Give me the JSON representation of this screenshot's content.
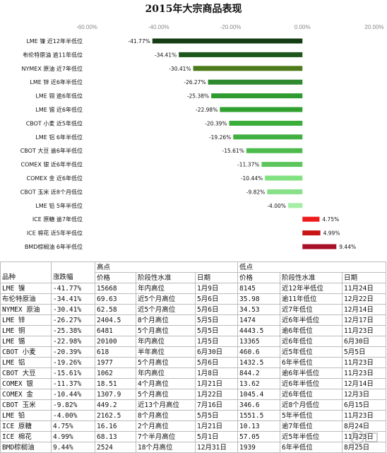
{
  "chart_data": {
    "type": "bar",
    "orientation": "horizontal",
    "title": "2015年大宗商品表现",
    "xlim": [
      -60,
      20
    ],
    "ticks": [
      "-60.00%",
      "-40.00%",
      "-20.00%",
      "0.00%",
      "20.00%"
    ],
    "tick_values": [
      -60,
      -40,
      -20,
      0,
      20
    ],
    "categories": [
      "LME 镍 近12年半低位",
      "布伦特原油 逾11年低位",
      "NYMEX 原油 近7年低位",
      "LME 锌 近6年半低位",
      "LME 铜 逾6年低位",
      "LME 锡 近6年低位",
      "CBOT 小麦 近5年低位",
      "LME 铝 6年半低位",
      "CBOT 大豆 逾6年半低位",
      "COMEX 银 近6年半低位",
      "COMEX 金 近6年低位",
      "CBOT 玉米 近8个月低位",
      "LME 铅 5年半低位",
      "ICE 原糖 逾7年低位",
      "ICE 棉花 近5年半低位",
      "BMD棕榈油 6年半低位"
    ],
    "values": [
      -41.77,
      -34.41,
      -30.41,
      -26.27,
      -25.38,
      -22.98,
      -20.39,
      -19.26,
      -15.61,
      -11.37,
      -10.44,
      -9.82,
      -4.0,
      4.75,
      4.99,
      9.44
    ],
    "value_labels": [
      "-41.77%",
      "-34.41%",
      "-30.41%",
      "-26.27%",
      "-25.38%",
      "-22.98%",
      "-20.39%",
      "-19.26%",
      "-15.61%",
      "-11.37%",
      "-10.44%",
      "-9.82%",
      "-4.00%",
      "4.75%",
      "4.99%",
      "9.44%"
    ],
    "colors": [
      "#143d14",
      "#1c571c",
      "#4d7a1a",
      "#2f8a2f",
      "#2f9b2f",
      "#30a030",
      "#3aad3a",
      "#40b040",
      "#4cbb4c",
      "#5cc65c",
      "#82e282",
      "#88e088",
      "#a6eea6",
      "#ee1c1c",
      "#c81414",
      "#a8102a"
    ],
    "grid": false,
    "legend": "none"
  },
  "table": {
    "group_headers": [
      "高点",
      "低点"
    ],
    "columns": [
      "品种",
      "涨跌幅",
      "价格",
      "阶段性水准",
      "日期",
      "价格",
      "阶段性水准",
      "日期"
    ],
    "rows": [
      [
        "LME 镍",
        "-41.77%",
        "15668",
        "年内高位",
        "1月9日",
        "8145",
        "近12年半低位",
        "11月24日"
      ],
      [
        "布伦特原油",
        "-34.41%",
        "69.63",
        "近5个月高位",
        "5月6日",
        "35.98",
        "逾11年低位",
        "12月22日"
      ],
      [
        "NYMEX 原油",
        "-30.41%",
        "62.58",
        "近5个月高位",
        "5月6日",
        "34.53",
        "近7年低位",
        "12月14日"
      ],
      [
        "LME 锌",
        "-26.27%",
        "2404.5",
        "8个月高位",
        "5月5日",
        "1474",
        "近6年半低位",
        "12月17日"
      ],
      [
        "LME 铜",
        "-25.38%",
        "6481",
        "5个月高位",
        "5月5日",
        "4443.5",
        "逾6年低位",
        "11月23日"
      ],
      [
        "LME 锡",
        "-22.98%",
        "20100",
        "年内高位",
        "1月5日",
        "13365",
        "近6年低位",
        "6月30日"
      ],
      [
        "CBOT 小麦",
        "-20.39%",
        "618",
        "半年高位",
        "6月30日",
        "460.6",
        "近5年低位",
        "5月5日"
      ],
      [
        "LME 铝",
        "-19.26%",
        "1977",
        "5个月高位",
        "5月6日",
        "1432.5",
        "6年半低位",
        "11月23日"
      ],
      [
        "CBOT 大豆",
        "-15.61%",
        "1062",
        "年内高位",
        "1月8日",
        "844.2",
        "逾6年半低位",
        "11月23日"
      ],
      [
        "COMEX 银",
        "-11.37%",
        "18.51",
        "4个月高位",
        "1月21日",
        "13.62",
        "近6年半低位",
        "12月14日"
      ],
      [
        "COMEX 金",
        "-10.44%",
        "1307.9",
        "5个月高位",
        "1月22日",
        "1045.4",
        "近6年低位",
        "12月3日"
      ],
      [
        "CBOT 玉米",
        "-9.82%",
        "449.2",
        "近13个月高位",
        "7月16日",
        "346.6",
        "近8个月低位",
        "6月15日"
      ],
      [
        "LME 铅",
        "-4.00%",
        "2162.5",
        "8个月高位",
        "5月5日",
        "1551.5",
        "5年半低位",
        "11月23日"
      ],
      [
        "ICE 原糖",
        "4.75%",
        "16.16",
        "2个月高位",
        "1月21日",
        "10.13",
        "逾7年低位",
        "8月24日"
      ],
      [
        "ICE 棉花",
        "4.99%",
        "68.13",
        "7个半月高位",
        "5月1日",
        "57.05",
        "近5年半低位",
        "11月23日"
      ],
      [
        "BMD棕榈油",
        "9.44%",
        "2524",
        "18个月高位",
        "12月31日",
        "1939",
        "6年半低位",
        "8月25日"
      ]
    ]
  }
}
